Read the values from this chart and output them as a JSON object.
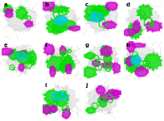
{
  "panels": [
    {
      "label": "a",
      "row": 0,
      "col": 0,
      "has_cyan": false,
      "cyan_big": false
    },
    {
      "label": "b",
      "row": 0,
      "col": 1,
      "has_cyan": true,
      "cyan_big": true
    },
    {
      "label": "c",
      "row": 0,
      "col": 2,
      "has_cyan": true,
      "cyan_big": true
    },
    {
      "label": "d",
      "row": 0,
      "col": 3,
      "has_cyan": false,
      "cyan_big": false
    },
    {
      "label": "e",
      "row": 1,
      "col": 0,
      "has_cyan": true,
      "cyan_big": false
    },
    {
      "label": "f",
      "row": 1,
      "col": 1,
      "has_cyan": false,
      "cyan_big": false
    },
    {
      "label": "g",
      "row": 1,
      "col": 2,
      "has_cyan": false,
      "cyan_big": false
    },
    {
      "label": "h",
      "row": 1,
      "col": 3,
      "has_cyan": true,
      "cyan_big": false
    },
    {
      "label": "i",
      "row": 2,
      "col": 1,
      "has_cyan": true,
      "cyan_big": true
    },
    {
      "label": "j",
      "row": 2,
      "col": 2,
      "has_cyan": false,
      "cyan_big": false
    }
  ],
  "nrows": 3,
  "ncols": 4,
  "bg_color": "#ffffff",
  "green": "#00dd00",
  "magenta": "#cc00cc",
  "cyan": "#00ccdd",
  "gray": "#aaaaaa",
  "gray2": "#cccccc",
  "line_color": "#999999",
  "label_color": "#000000",
  "label_fontsize": 5,
  "seeds": [
    42,
    7,
    13,
    99,
    55,
    21,
    66,
    88,
    34,
    77
  ]
}
